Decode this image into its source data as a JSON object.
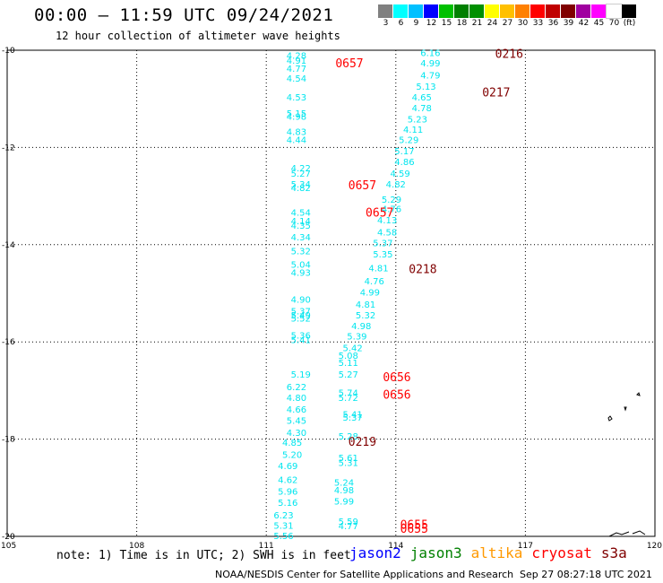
{
  "header": {
    "title": "00:00 – 11:59 UTC 09/24/2021",
    "subtitle": "12 hour collection of altimeter wave heights"
  },
  "legend": {
    "labels": [
      "3",
      "6",
      "9",
      "12",
      "15",
      "18",
      "21",
      "24",
      "27",
      "30",
      "33",
      "36",
      "39",
      "42",
      "45",
      "70",
      "(ft)"
    ],
    "colors": [
      "#808080",
      "#00ffff",
      "#00c0ff",
      "#0000ff",
      "#00c000",
      "#008000",
      "#009000",
      "#ffff00",
      "#ffc000",
      "#ff8000",
      "#ff0000",
      "#c00000",
      "#800000",
      "#a000a0",
      "#ff00ff",
      "#ffffff",
      "#000000"
    ]
  },
  "footer": {
    "note": "note: 1) Time is in UTC; 2) SWH is in feet",
    "satellites": [
      {
        "name": "jason2",
        "color": "#0000ff"
      },
      {
        "name": "jason3",
        "color": "#008000"
      },
      {
        "name": "altika",
        "color": "#ff9900"
      },
      {
        "name": "cryosat",
        "color": "#ff0000"
      },
      {
        "name": "s3a",
        "color": "#800000"
      }
    ],
    "credit": "NOAA/NESDIS Center for Satellite Applications and Research",
    "generated": "Sep 27 08:27:18 UTC 2021"
  },
  "map": {
    "lon_range": [
      105,
      120
    ],
    "lat_range": [
      -20,
      -10
    ],
    "x_ticks": [
      "105",
      "108",
      "111",
      "114",
      "117",
      "120"
    ],
    "y_ticks": [
      "-10",
      "-12",
      "-14",
      "-16",
      "-18",
      "-20"
    ],
    "grid": "dotted",
    "value_color": "#00e5ee",
    "track_colors": {
      "cryosat": "#ff0000",
      "s3a": "#800000"
    },
    "time_labels": [
      {
        "text": "0216",
        "lon": 116.3,
        "lat": -10.06,
        "track": "s3a"
      },
      {
        "text": "0657",
        "lon": 112.6,
        "lat": -10.26,
        "track": "cryosat"
      },
      {
        "text": "0217",
        "lon": 116.0,
        "lat": -10.86,
        "track": "s3a"
      },
      {
        "text": "0657",
        "lon": 112.9,
        "lat": -12.77,
        "track": "cryosat"
      },
      {
        "text": "0657",
        "lon": 113.3,
        "lat": -13.33,
        "track": "cryosat"
      },
      {
        "text": "0218",
        "lon": 114.3,
        "lat": -14.49,
        "track": "s3a"
      },
      {
        "text": "0656",
        "lon": 113.7,
        "lat": -16.72,
        "track": "cryosat"
      },
      {
        "text": "0656",
        "lon": 113.7,
        "lat": -17.08,
        "track": "cryosat"
      },
      {
        "text": "0219",
        "lon": 112.9,
        "lat": -18.04,
        "track": "s3a"
      },
      {
        "text": "0655",
        "lon": 114.1,
        "lat": -19.75,
        "track": "cryosat"
      },
      {
        "text": "0655",
        "lon": 114.1,
        "lat": -19.83,
        "track": "cryosat"
      }
    ],
    "wave_heights": [
      {
        "value": "6.16",
        "lon": 114.8,
        "lat": -10.05
      },
      {
        "value": "4.99",
        "lon": 114.8,
        "lat": -10.26
      },
      {
        "value": "4.79",
        "lon": 114.8,
        "lat": -10.51
      },
      {
        "value": "5.13",
        "lon": 114.7,
        "lat": -10.74
      },
      {
        "value": "4.65",
        "lon": 114.6,
        "lat": -10.96
      },
      {
        "value": "4.78",
        "lon": 114.6,
        "lat": -11.18
      },
      {
        "value": "5.23",
        "lon": 114.5,
        "lat": -11.41
      },
      {
        "value": "4.11",
        "lon": 114.4,
        "lat": -11.62
      },
      {
        "value": "5.29",
        "lon": 114.3,
        "lat": -11.84
      },
      {
        "value": "5.17",
        "lon": 114.2,
        "lat": -12.07
      },
      {
        "value": "4.86",
        "lon": 114.2,
        "lat": -12.29
      },
      {
        "value": "4.59",
        "lon": 114.1,
        "lat": -12.53
      },
      {
        "value": "4.82",
        "lon": 114.0,
        "lat": -12.75
      },
      {
        "value": "5.29",
        "lon": 113.9,
        "lat": -13.06
      },
      {
        "value": "4.76",
        "lon": 113.9,
        "lat": -13.26
      },
      {
        "value": "4.13",
        "lon": 113.8,
        "lat": -13.49
      },
      {
        "value": "4.58",
        "lon": 113.8,
        "lat": -13.74
      },
      {
        "value": "5.37",
        "lon": 113.7,
        "lat": -13.96
      },
      {
        "value": "5.35",
        "lon": 113.7,
        "lat": -14.19
      },
      {
        "value": "4.81",
        "lon": 113.6,
        "lat": -14.47
      },
      {
        "value": "4.76",
        "lon": 113.5,
        "lat": -14.74
      },
      {
        "value": "4.99",
        "lon": 113.4,
        "lat": -14.97
      },
      {
        "value": "4.81",
        "lon": 113.3,
        "lat": -15.22
      },
      {
        "value": "5.32",
        "lon": 113.3,
        "lat": -15.44
      },
      {
        "value": "4.98",
        "lon": 113.2,
        "lat": -15.66
      },
      {
        "value": "5.39",
        "lon": 113.1,
        "lat": -15.88
      },
      {
        "value": "5.42",
        "lon": 113.0,
        "lat": -16.12
      },
      {
        "value": "5.08",
        "lon": 112.9,
        "lat": -16.27
      },
      {
        "value": "5.11",
        "lon": 112.9,
        "lat": -16.42
      },
      {
        "value": "5.27",
        "lon": 112.9,
        "lat": -16.66
      },
      {
        "value": "5.74",
        "lon": 112.9,
        "lat": -17.04
      },
      {
        "value": "5.72",
        "lon": 112.9,
        "lat": -17.14
      },
      {
        "value": "5.41",
        "lon": 113.0,
        "lat": -17.48
      },
      {
        "value": "5.37",
        "lon": 113.0,
        "lat": -17.55
      },
      {
        "value": "5.28",
        "lon": 112.9,
        "lat": -17.93
      },
      {
        "value": "5.61",
        "lon": 112.9,
        "lat": -18.38
      },
      {
        "value": "5.31",
        "lon": 112.9,
        "lat": -18.48
      },
      {
        "value": "5.24",
        "lon": 112.8,
        "lat": -18.88
      },
      {
        "value": "4.98",
        "lon": 112.8,
        "lat": -19.04
      },
      {
        "value": "5.99",
        "lon": 112.8,
        "lat": -19.27
      },
      {
        "value": "5.59",
        "lon": 112.9,
        "lat": -19.69
      },
      {
        "value": "4.77",
        "lon": 112.9,
        "lat": -19.78
      },
      {
        "value": "4.28",
        "lon": 111.7,
        "lat": -10.1
      },
      {
        "value": "4.91",
        "lon": 111.7,
        "lat": -10.2
      },
      {
        "value": "4.77",
        "lon": 111.7,
        "lat": -10.37
      },
      {
        "value": "4.54",
        "lon": 111.7,
        "lat": -10.57
      },
      {
        "value": "4.53",
        "lon": 111.7,
        "lat": -10.96
      },
      {
        "value": "5.15",
        "lon": 111.7,
        "lat": -11.29
      },
      {
        "value": "4.98",
        "lon": 111.7,
        "lat": -11.36
      },
      {
        "value": "4.83",
        "lon": 111.7,
        "lat": -11.67
      },
      {
        "value": "4.44",
        "lon": 111.7,
        "lat": -11.84
      },
      {
        "value": "4.22",
        "lon": 111.8,
        "lat": -12.42
      },
      {
        "value": "5.27",
        "lon": 111.8,
        "lat": -12.53
      },
      {
        "value": "5.34",
        "lon": 111.8,
        "lat": -12.75
      },
      {
        "value": "4.82",
        "lon": 111.8,
        "lat": -12.82
      },
      {
        "value": "4.54",
        "lon": 111.8,
        "lat": -13.33
      },
      {
        "value": "4.14",
        "lon": 111.8,
        "lat": -13.51
      },
      {
        "value": "4.35",
        "lon": 111.8,
        "lat": -13.6
      },
      {
        "value": "4.34",
        "lon": 111.8,
        "lat": -13.84
      },
      {
        "value": "5.32",
        "lon": 111.8,
        "lat": -14.12
      },
      {
        "value": "5.04",
        "lon": 111.8,
        "lat": -14.4
      },
      {
        "value": "4.93",
        "lon": 111.8,
        "lat": -14.57
      },
      {
        "value": "4.90",
        "lon": 111.8,
        "lat": -15.12
      },
      {
        "value": "5.37",
        "lon": 111.8,
        "lat": -15.36
      },
      {
        "value": "5.49",
        "lon": 111.8,
        "lat": -15.44
      },
      {
        "value": "5.52",
        "lon": 111.8,
        "lat": -15.51
      },
      {
        "value": "5.36",
        "lon": 111.8,
        "lat": -15.86
      },
      {
        "value": "5.41",
        "lon": 111.8,
        "lat": -15.95
      },
      {
        "value": "5.19",
        "lon": 111.8,
        "lat": -16.66
      },
      {
        "value": "6.22",
        "lon": 111.7,
        "lat": -16.92
      },
      {
        "value": "4.80",
        "lon": 111.7,
        "lat": -17.14
      },
      {
        "value": "4.66",
        "lon": 111.7,
        "lat": -17.38
      },
      {
        "value": "5.45",
        "lon": 111.7,
        "lat": -17.61
      },
      {
        "value": "4.30",
        "lon": 111.7,
        "lat": -17.86
      },
      {
        "value": "4.85",
        "lon": 111.6,
        "lat": -18.06
      },
      {
        "value": "5.20",
        "lon": 111.6,
        "lat": -18.31
      },
      {
        "value": "4.69",
        "lon": 111.5,
        "lat": -18.54
      },
      {
        "value": "4.62",
        "lon": 111.5,
        "lat": -18.83
      },
      {
        "value": "5.96",
        "lon": 111.5,
        "lat": -19.07
      },
      {
        "value": "5.16",
        "lon": 111.5,
        "lat": -19.3
      },
      {
        "value": "6.23",
        "lon": 111.4,
        "lat": -19.56
      },
      {
        "value": "5.31",
        "lon": 111.4,
        "lat": -19.77
      },
      {
        "value": "5.56",
        "lon": 111.4,
        "lat": -19.98
      }
    ]
  }
}
